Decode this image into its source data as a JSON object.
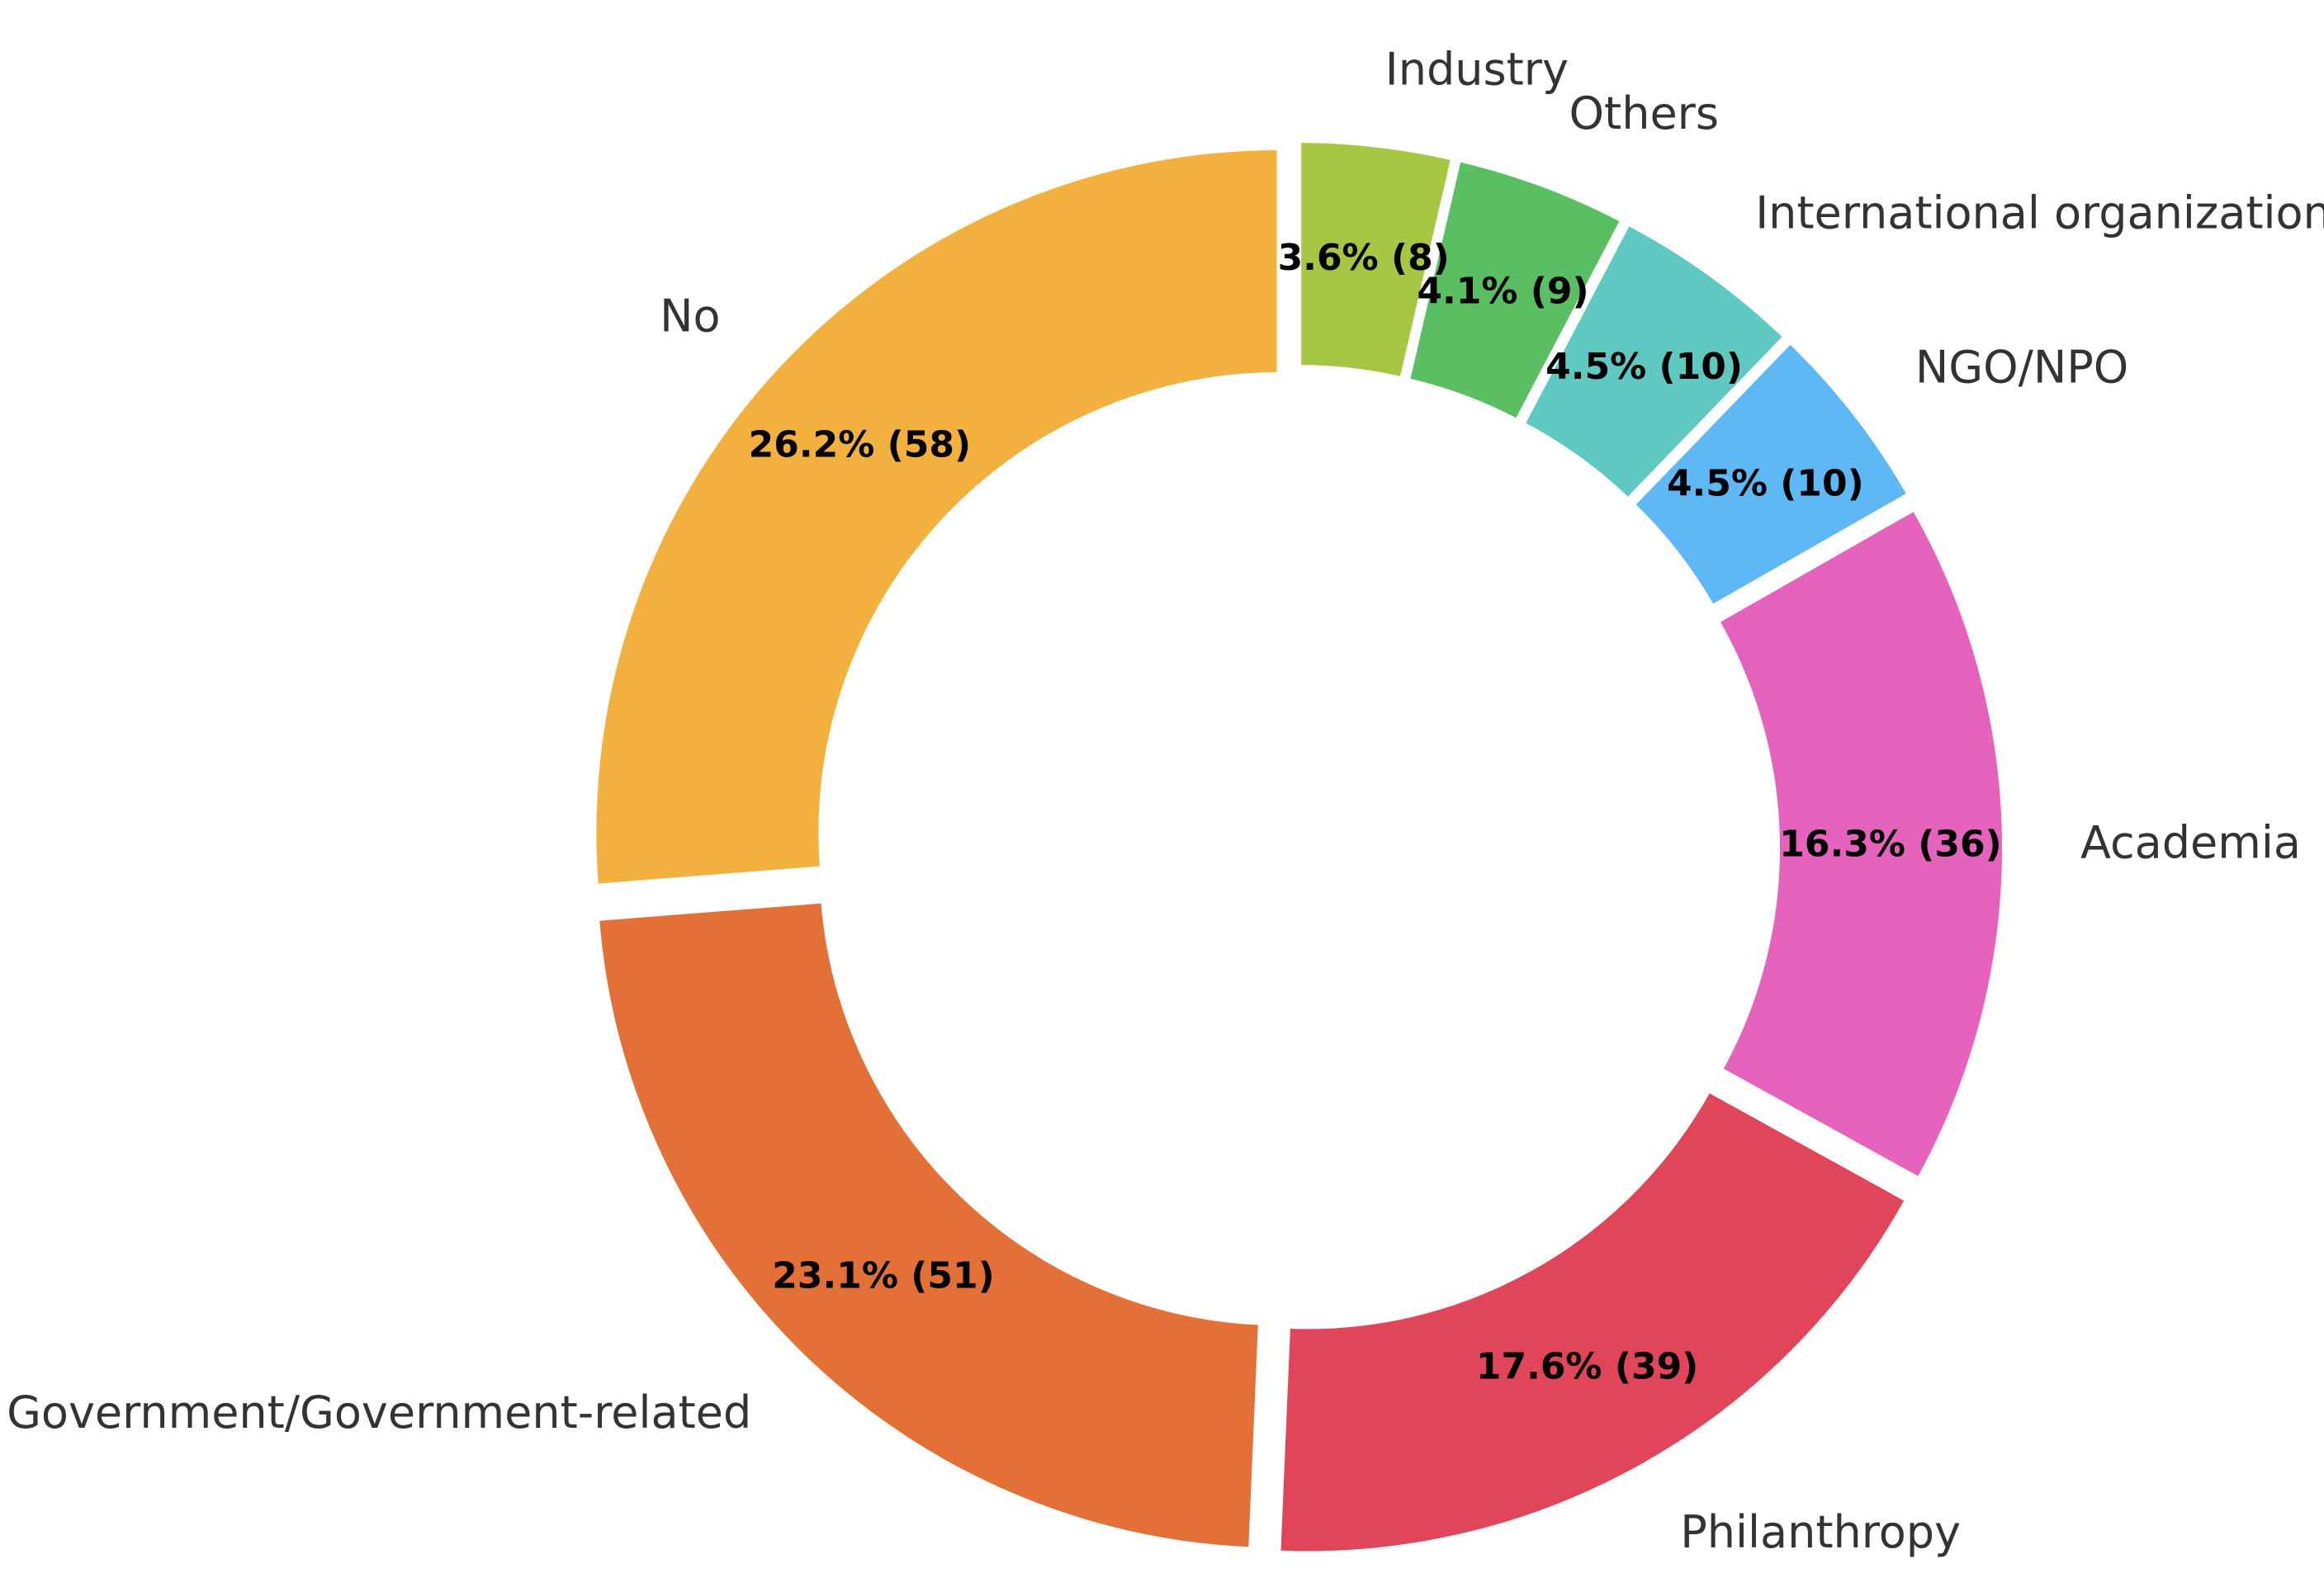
{
  "chart_data": {
    "type": "pie",
    "title": "",
    "donut": true,
    "start_angle_deg": 90,
    "direction": "clockwise",
    "total": 221,
    "categories": [
      "Industry",
      "Others",
      "International organization",
      "NGO/NPO",
      "Academia",
      "Philanthropy",
      "Government/Government-related",
      "No"
    ],
    "values": [
      8,
      9,
      10,
      10,
      36,
      39,
      51,
      58
    ],
    "value_labels": [
      "3.6% (8)",
      "4.1% (9)",
      "4.5% (10)",
      "4.5% (10)",
      "16.3% (36)",
      "17.6% (39)",
      "23.1% (51)",
      "26.2% (58)"
    ],
    "colors": [
      "#a5c744",
      "#5abf62",
      "#5ec8c1",
      "#5db8f5",
      "#e562bd",
      "#e04559",
      "#e27037",
      "#f2b03e"
    ],
    "legend": "none"
  }
}
